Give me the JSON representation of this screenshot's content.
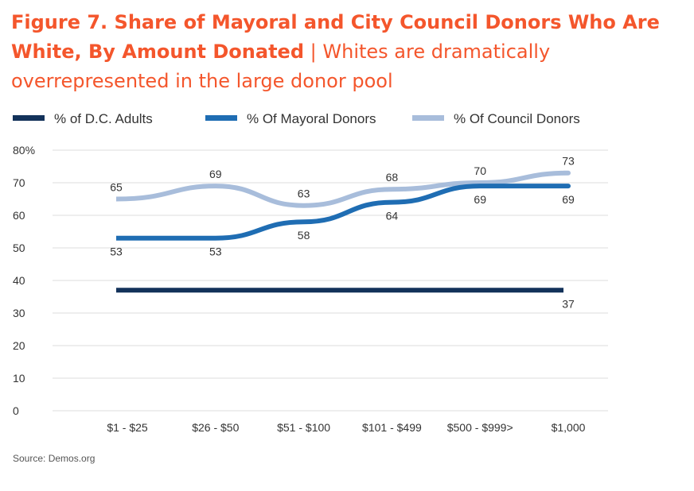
{
  "header": {
    "title_bold": "Figure 7. Share of Mayoral and City Council Donors Who Are White, By Amount Donated",
    "separator": "|",
    "subtitle": "Whites are dramatically overrepresented in the large donor pool"
  },
  "source": "Source: Demos.org",
  "chart_data": {
    "type": "line",
    "categories": [
      "$1 - $25",
      "$26 - $50",
      "$51 - $100",
      "$101 - $499",
      "$500 - $999>",
      "$1,000"
    ],
    "ylim": [
      0,
      80
    ],
    "yticks": [
      "0",
      "10",
      "20",
      "30",
      "40",
      "50",
      "60",
      "70",
      "80%"
    ],
    "grid": true,
    "legend_position": "top",
    "series": [
      {
        "name": "% of D.C. Adults",
        "color": "#13325a",
        "values": [
          37,
          37,
          37,
          37,
          37,
          37
        ],
        "labels": [
          null,
          null,
          null,
          null,
          null,
          "37"
        ],
        "label_side": [
          "below",
          "below",
          "below",
          "below",
          "below",
          "below"
        ]
      },
      {
        "name": "% Of Mayoral Donors",
        "color": "#1f6db3",
        "values": [
          53,
          53,
          58,
          64,
          69,
          69
        ],
        "labels": [
          "53",
          "53",
          "58",
          "64",
          "69",
          "69"
        ],
        "label_side": [
          "below",
          "below",
          "below",
          "below",
          "below",
          "below"
        ]
      },
      {
        "name": "% Of Council Donors",
        "color": "#a8bddb",
        "values": [
          65,
          69,
          63,
          68,
          70,
          73
        ],
        "labels": [
          "65",
          "69",
          "63",
          "68",
          "70",
          "73"
        ],
        "label_side": [
          "above",
          "above",
          "above",
          "above",
          "above",
          "above"
        ]
      }
    ]
  }
}
